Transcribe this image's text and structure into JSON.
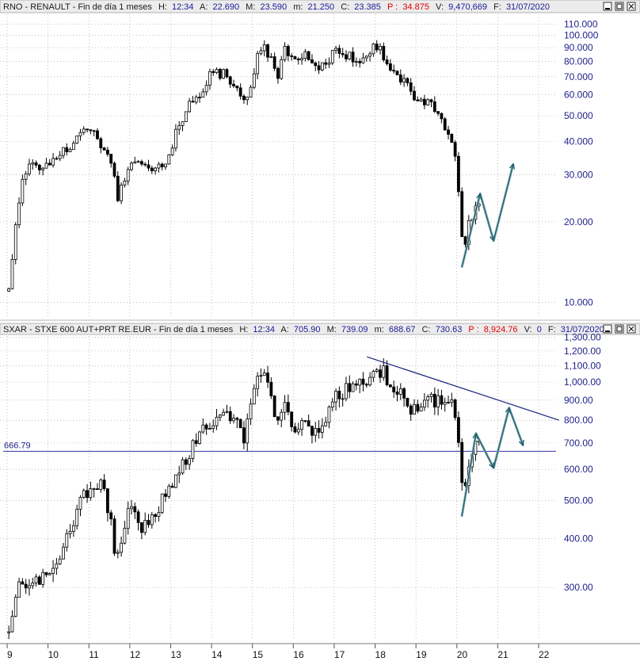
{
  "colors": {
    "candle": "#000000",
    "grid": "#9a9a9a",
    "axis_text": "#22228a",
    "header_bg": "#ececec",
    "ref_line": "#3333aa",
    "trend_line": "#1a237e",
    "projection": "#1f5f6b",
    "price_red": "#e00000"
  },
  "window_controls": {
    "minimize_icon": "minimize-icon",
    "restore_icon": "restore-icon",
    "close_icon": "close-icon"
  },
  "chart_data": [
    {
      "type": "candlestick",
      "scale": "log",
      "header": {
        "title": "RNO - RENAULT - Fin de día 1 meses",
        "h_label": "H:",
        "h_value": "12:34",
        "a_label": "A:",
        "a_value": "22.690",
        "m_label": "M:",
        "m_value": "23.590",
        "mn_label": "m:",
        "mn_value": "21.250",
        "c_label": "C:",
        "c_value": "23.385",
        "p_label": "P :",
        "p_value": "34.875",
        "v_label": "V:",
        "v_value": "9,470,669",
        "f_label": "F:",
        "f_value": "31/07/2020"
      },
      "ylim": [
        8.8,
        120
      ],
      "y_ticks": [
        {
          "v": 110,
          "label": "110.000"
        },
        {
          "v": 100,
          "label": "100.000"
        },
        {
          "v": 90,
          "label": "90.000"
        },
        {
          "v": 80,
          "label": "80.000"
        },
        {
          "v": 70,
          "label": "70.000"
        },
        {
          "v": 60,
          "label": "60.000"
        },
        {
          "v": 50,
          "label": "50.000"
        },
        {
          "v": 40,
          "label": "40.000"
        },
        {
          "v": 30,
          "label": "30.000"
        },
        {
          "v": 20,
          "label": "20.000"
        },
        {
          "v": 10,
          "label": "10.000"
        }
      ],
      "anchors": [
        [
          2009.0,
          11.0
        ],
        [
          2009.08,
          12.5
        ],
        [
          2009.2,
          19.0
        ],
        [
          2009.35,
          28.0
        ],
        [
          2009.6,
          33.0
        ],
        [
          2010.0,
          32.0
        ],
        [
          2010.4,
          37.0
        ],
        [
          2010.75,
          41.0
        ],
        [
          2011.0,
          46.0
        ],
        [
          2011.3,
          38.0
        ],
        [
          2011.55,
          34.0
        ],
        [
          2011.7,
          24.5
        ],
        [
          2011.85,
          28.5
        ],
        [
          2012.0,
          34.0
        ],
        [
          2012.3,
          33.5
        ],
        [
          2012.5,
          30.0
        ],
        [
          2012.9,
          34.0
        ],
        [
          2013.1,
          42.0
        ],
        [
          2013.4,
          53.0
        ],
        [
          2013.7,
          60.0
        ],
        [
          2014.0,
          72.0
        ],
        [
          2014.3,
          72.0
        ],
        [
          2014.6,
          64.0
        ],
        [
          2014.8,
          56.0
        ],
        [
          2015.0,
          70.0
        ],
        [
          2015.2,
          92.0
        ],
        [
          2015.45,
          84.0
        ],
        [
          2015.6,
          66.0
        ],
        [
          2015.8,
          90.0
        ],
        [
          2016.0,
          78.0
        ],
        [
          2016.3,
          84.0
        ],
        [
          2016.5,
          74.0
        ],
        [
          2016.8,
          80.0
        ],
        [
          2017.0,
          86.0
        ],
        [
          2017.3,
          84.0
        ],
        [
          2017.6,
          80.0
        ],
        [
          2017.8,
          86.0
        ],
        [
          2018.0,
          93.0
        ],
        [
          2018.3,
          80.0
        ],
        [
          2018.55,
          72.0
        ],
        [
          2018.8,
          64.0
        ],
        [
          2019.0,
          58.0
        ],
        [
          2019.3,
          56.0
        ],
        [
          2019.5,
          52.0
        ],
        [
          2019.8,
          44.0
        ],
        [
          2019.92,
          38.0
        ],
        [
          2020.0,
          30.0
        ],
        [
          2020.15,
          15.5
        ],
        [
          2020.3,
          20.0
        ],
        [
          2020.5,
          23.385
        ]
      ],
      "projection_points": [
        [
          2020.12,
          13.5
        ],
        [
          2020.57,
          25.5
        ],
        [
          2020.9,
          17.0
        ],
        [
          2021.38,
          33.0
        ]
      ]
    },
    {
      "type": "candlestick",
      "scale": "log",
      "header": {
        "title": "SXAR - STXE 600 AUT+PRT RE.EUR - Fin de día 1 meses",
        "h_label": "H:",
        "h_value": "12:34",
        "a_label": "A:",
        "a_value": "705.90",
        "m_label": "M:",
        "m_value": "739.09",
        "mn_label": "m:",
        "mn_value": "688.67",
        "c_label": "C:",
        "c_value": "730.63",
        "p_label": "P :",
        "p_value": "8,924.76",
        "v_label": "V:",
        "v_value": "0",
        "f_label": "F:",
        "f_value": "31/07/2020"
      },
      "ylim": [
        220,
        1310
      ],
      "y_ticks": [
        {
          "v": 1300,
          "label": "1,300.00"
        },
        {
          "v": 1200,
          "label": "1,200.00"
        },
        {
          "v": 1100,
          "label": "1,100.00"
        },
        {
          "v": 1000,
          "label": "1,000.00"
        },
        {
          "v": 900,
          "label": "900.00"
        },
        {
          "v": 800,
          "label": "800.00"
        },
        {
          "v": 700,
          "label": "700.00"
        },
        {
          "v": 600,
          "label": "600.00"
        },
        {
          "v": 500,
          "label": "500.00"
        },
        {
          "v": 400,
          "label": "400.00"
        },
        {
          "v": 300,
          "label": "300.00"
        }
      ],
      "reference_line": {
        "value": 666.79,
        "label": "666.79"
      },
      "trend_line": [
        [
          2017.8,
          1160
        ],
        [
          2022.5,
          800
        ]
      ],
      "anchors": [
        [
          2009.0,
          230
        ],
        [
          2009.1,
          260
        ],
        [
          2009.3,
          300
        ],
        [
          2009.6,
          310
        ],
        [
          2010.0,
          330
        ],
        [
          2010.4,
          380
        ],
        [
          2010.7,
          470
        ],
        [
          2011.0,
          540
        ],
        [
          2011.3,
          550
        ],
        [
          2011.55,
          450
        ],
        [
          2011.65,
          360
        ],
        [
          2011.85,
          420
        ],
        [
          2012.0,
          480
        ],
        [
          2012.3,
          430
        ],
        [
          2012.6,
          460
        ],
        [
          2012.9,
          520
        ],
        [
          2013.2,
          580
        ],
        [
          2013.5,
          680
        ],
        [
          2013.8,
          760
        ],
        [
          2014.0,
          800
        ],
        [
          2014.3,
          820
        ],
        [
          2014.6,
          790
        ],
        [
          2014.8,
          720
        ],
        [
          2015.0,
          900
        ],
        [
          2015.2,
          1060
        ],
        [
          2015.4,
          980
        ],
        [
          2015.6,
          780
        ],
        [
          2015.8,
          900
        ],
        [
          2016.0,
          760
        ],
        [
          2016.3,
          790
        ],
        [
          2016.5,
          720
        ],
        [
          2016.8,
          800
        ],
        [
          2017.0,
          900
        ],
        [
          2017.3,
          960
        ],
        [
          2017.6,
          1000
        ],
        [
          2017.8,
          1010
        ],
        [
          2018.0,
          1080
        ],
        [
          2018.2,
          1060
        ],
        [
          2018.4,
          980
        ],
        [
          2018.7,
          920
        ],
        [
          2019.0,
          830
        ],
        [
          2019.3,
          900
        ],
        [
          2019.5,
          880
        ],
        [
          2019.8,
          930
        ],
        [
          2019.92,
          900
        ],
        [
          2020.0,
          760
        ],
        [
          2020.15,
          520
        ],
        [
          2020.3,
          640
        ],
        [
          2020.5,
          730.63
        ]
      ],
      "projection_points": [
        [
          2020.12,
          455
        ],
        [
          2020.47,
          740
        ],
        [
          2020.9,
          605
        ],
        [
          2021.28,
          860
        ],
        [
          2021.62,
          690
        ]
      ]
    }
  ],
  "x_axis": {
    "ticks": [
      {
        "v": 2009,
        "label": "9"
      },
      {
        "v": 2010,
        "label": "10"
      },
      {
        "v": 2011,
        "label": "11"
      },
      {
        "v": 2012,
        "label": "12"
      },
      {
        "v": 2013,
        "label": "13"
      },
      {
        "v": 2014,
        "label": "14"
      },
      {
        "v": 2015,
        "label": "15"
      },
      {
        "v": 2016,
        "label": "16"
      },
      {
        "v": 2017,
        "label": "17"
      },
      {
        "v": 2018,
        "label": "18"
      },
      {
        "v": 2019,
        "label": "19"
      },
      {
        "v": 2020,
        "label": "20"
      },
      {
        "v": 2021,
        "label": "21"
      },
      {
        "v": 2022,
        "label": "22"
      }
    ]
  }
}
